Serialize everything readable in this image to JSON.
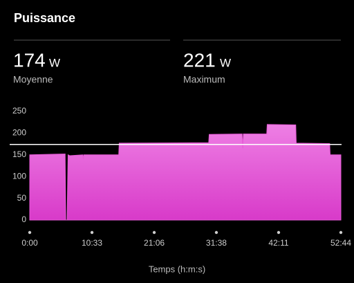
{
  "title": "Puissance",
  "stats": [
    {
      "value": 174,
      "unit": "W",
      "label": "Moyenne"
    },
    {
      "value": 221,
      "unit": "W",
      "label": "Maximum"
    }
  ],
  "chart_data": {
    "type": "area",
    "xlabel": "Temps (h:m:s)",
    "x": [
      0,
      360,
      366,
      380,
      390,
      408,
      540,
      545,
      550,
      905,
      910,
      1820,
      1825,
      2160,
      2166,
      2172,
      2410,
      2415,
      2705,
      2710,
      3050,
      3055,
      3164
    ],
    "values": [
      150,
      152,
      0,
      0,
      150,
      148,
      150,
      140,
      150,
      150,
      177,
      178,
      197,
      198,
      165,
      198,
      198,
      220,
      219,
      177,
      176,
      150,
      150
    ],
    "color": "#e65ad6",
    "xlim": [
      0,
      3164
    ],
    "xticks": [
      {
        "value": 0,
        "label": "0:00"
      },
      {
        "value": 633,
        "label": "10:33"
      },
      {
        "value": 1266,
        "label": "21:06"
      },
      {
        "value": 1898,
        "label": "31:38"
      },
      {
        "value": 2531,
        "label": "42:11"
      },
      {
        "value": 3164,
        "label": "52:44"
      }
    ],
    "ylim": [
      0,
      250
    ],
    "yticks": [
      0,
      50,
      100,
      150,
      200,
      250
    ],
    "grid": false
  }
}
